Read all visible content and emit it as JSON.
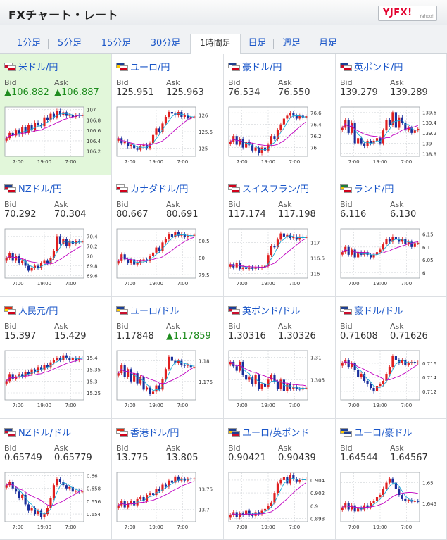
{
  "header": {
    "title": "FXチャート・レート",
    "logo": "YJFX!",
    "logo_sub": "Yahoo!"
  },
  "tabs": [
    {
      "label": "1分足",
      "active": false
    },
    {
      "label": "5分足",
      "active": false
    },
    {
      "label": "15分足",
      "active": false
    },
    {
      "label": "30分足",
      "active": false
    },
    {
      "label": "1時間足",
      "active": true
    },
    {
      "label": "日足",
      "active": false
    },
    {
      "label": "週足",
      "active": false
    },
    {
      "label": "月足",
      "active": false
    }
  ],
  "labels": {
    "bid": "Bid",
    "ask": "Ask"
  },
  "colors": {
    "link": "#1a56c8",
    "up": "#1e8c1e",
    "bull": "#e02020",
    "bear": "#1a2f9c",
    "ma_fast": "#19a9d6",
    "ma_slow": "#c000c0",
    "selected_bg": "#e2f7da"
  },
  "pairs": [
    {
      "name": "米ドル/円",
      "bid": "▲106.882",
      "ask": "▲106.887",
      "bid_up": true,
      "ask_up": true,
      "selected": true,
      "flags": [
        "us",
        "jp"
      ],
      "chart_data": {
        "type": "candlestick",
        "x_ticks": [
          "7:00",
          "19:00",
          "7:00"
        ],
        "y_ticks": [
          "107",
          "106.8",
          "106.6",
          "106.4",
          "106.2"
        ],
        "ylim": [
          106.1,
          107.05
        ],
        "close": [
          106.45,
          106.55,
          106.5,
          106.6,
          106.52,
          106.66,
          106.55,
          106.7,
          106.6,
          106.75,
          106.7,
          106.68,
          106.85,
          106.8,
          106.92,
          106.85,
          106.98,
          106.9,
          106.95,
          106.88,
          106.9,
          106.86,
          106.9,
          106.88,
          106.89
        ]
      }
    },
    {
      "name": "ユーロ/円",
      "bid": "125.951",
      "ask": "125.963",
      "bid_up": false,
      "ask_up": false,
      "selected": false,
      "flags": [
        "eu",
        "jp"
      ],
      "chart_data": {
        "type": "candlestick",
        "x_ticks": [
          "7:00",
          "19:00",
          "7:00"
        ],
        "y_ticks": [
          "126",
          "125.5",
          "125"
        ],
        "ylim": [
          124.75,
          126.25
        ],
        "close": [
          125.3,
          125.15,
          125.2,
          125.05,
          125.1,
          125.0,
          124.95,
          125.05,
          125.1,
          125.0,
          125.15,
          125.4,
          125.6,
          125.5,
          125.75,
          125.95,
          126.1,
          126.05,
          126.0,
          126.1,
          125.95,
          126.0,
          125.9,
          125.95,
          125.96
        ]
      }
    },
    {
      "name": "豪ドル/円",
      "bid": "76.534",
      "ask": "76.550",
      "bid_up": false,
      "ask_up": false,
      "selected": false,
      "flags": [
        "au",
        "jp"
      ],
      "chart_data": {
        "type": "candlestick",
        "x_ticks": [
          "7:00",
          "19:00",
          "7:00"
        ],
        "y_ticks": [
          "76.6",
          "76.4",
          "76.2",
          "76"
        ],
        "ylim": [
          75.85,
          76.7
        ],
        "close": [
          76.1,
          76.2,
          76.05,
          76.15,
          76.0,
          76.1,
          76.05,
          75.95,
          76.0,
          75.9,
          76.0,
          75.95,
          76.05,
          76.2,
          76.15,
          76.3,
          76.4,
          76.5,
          76.55,
          76.6,
          76.55,
          76.5,
          76.55,
          76.52,
          76.54
        ]
      }
    },
    {
      "name": "英ポンド/円",
      "bid": "139.279",
      "ask": "139.289",
      "bid_up": false,
      "ask_up": false,
      "selected": false,
      "flags": [
        "gb",
        "jp"
      ],
      "chart_data": {
        "type": "candlestick",
        "x_ticks": [
          "7:00",
          "19:00",
          "7:00"
        ],
        "y_ticks": [
          "139.6",
          "139.4",
          "139.2",
          "139",
          "138.8"
        ],
        "ylim": [
          138.75,
          139.7
        ],
        "close": [
          139.3,
          139.45,
          139.2,
          139.4,
          139.0,
          139.1,
          139.0,
          138.95,
          139.05,
          139.0,
          139.05,
          139.1,
          139.0,
          139.25,
          139.45,
          139.35,
          139.6,
          139.3,
          139.5,
          139.4,
          139.25,
          139.3,
          139.2,
          139.25,
          139.28
        ]
      }
    },
    {
      "name": "NZドル/円",
      "bid": "70.292",
      "ask": "70.304",
      "bid_up": false,
      "ask_up": false,
      "selected": false,
      "flags": [
        "nz",
        "jp"
      ],
      "chart_data": {
        "type": "candlestick",
        "x_ticks": [
          "7:00",
          "19:00",
          "7:00"
        ],
        "y_ticks": [
          "70.4",
          "70.2",
          "70",
          "69.8",
          "69.6"
        ],
        "ylim": [
          69.55,
          70.55
        ],
        "close": [
          69.95,
          70.05,
          69.9,
          70.0,
          69.85,
          69.9,
          69.8,
          69.7,
          69.75,
          69.8,
          69.75,
          69.85,
          69.9,
          69.85,
          69.95,
          70.1,
          70.4,
          70.25,
          70.35,
          70.2,
          70.3,
          70.25,
          70.3,
          70.28,
          70.29
        ]
      }
    },
    {
      "name": "カナダドル/円",
      "bid": "80.667",
      "ask": "80.691",
      "bid_up": false,
      "ask_up": false,
      "selected": false,
      "flags": [
        "ca",
        "jp"
      ],
      "chart_data": {
        "type": "candlestick",
        "x_ticks": [
          "7:00",
          "19:00",
          "7:00"
        ],
        "y_ticks": [
          "80.5",
          "80",
          "79.5"
        ],
        "ylim": [
          79.4,
          80.85
        ],
        "close": [
          79.9,
          80.1,
          79.95,
          79.85,
          79.95,
          79.8,
          79.85,
          79.9,
          79.95,
          79.9,
          80.05,
          80.15,
          80.3,
          80.2,
          80.45,
          80.55,
          80.7,
          80.6,
          80.75,
          80.65,
          80.7,
          80.6,
          80.65,
          80.66,
          80.67
        ]
      }
    },
    {
      "name": "スイスフラン/円",
      "bid": "117.174",
      "ask": "117.198",
      "bid_up": false,
      "ask_up": false,
      "selected": false,
      "flags": [
        "ch",
        "jp"
      ],
      "chart_data": {
        "type": "candlestick",
        "x_ticks": [
          "7:00",
          "19:00",
          "7:00"
        ],
        "y_ticks": [
          "117",
          "116.5",
          "116"
        ],
        "ylim": [
          115.85,
          117.45
        ],
        "close": [
          116.3,
          116.2,
          116.35,
          116.15,
          116.2,
          116.15,
          116.2,
          116.15,
          116.2,
          116.18,
          116.2,
          116.25,
          116.6,
          116.9,
          116.85,
          117.1,
          117.3,
          117.2,
          117.25,
          117.15,
          117.2,
          117.1,
          117.2,
          117.17,
          117.18
        ]
      }
    },
    {
      "name": "ランド/円",
      "bid": "6.116",
      "ask": "6.130",
      "bid_up": false,
      "ask_up": false,
      "selected": false,
      "flags": [
        "za",
        "jp"
      ],
      "chart_data": {
        "type": "candlestick",
        "x_ticks": [
          "7:00",
          "19:00",
          "7:00"
        ],
        "y_ticks": [
          "6.15",
          "6.1",
          "6.05",
          "6"
        ],
        "ylim": [
          5.98,
          6.17
        ],
        "close": [
          6.08,
          6.1,
          6.07,
          6.09,
          6.06,
          6.08,
          6.07,
          6.08,
          6.07,
          6.06,
          6.07,
          6.08,
          6.09,
          6.11,
          6.13,
          6.12,
          6.14,
          6.13,
          6.12,
          6.13,
          6.11,
          6.12,
          6.1,
          6.115,
          6.116
        ]
      }
    },
    {
      "name": "人民元/円",
      "bid": "15.397",
      "ask": "15.429",
      "bid_up": false,
      "ask_up": false,
      "selected": false,
      "flags": [
        "cn",
        "jp"
      ],
      "chart_data": {
        "type": "candlestick",
        "x_ticks": [
          "7:00",
          "19:00",
          "7:00"
        ],
        "y_ticks": [
          "15.4",
          "15.35",
          "15.3",
          "15.25"
        ],
        "ylim": [
          15.22,
          15.43
        ],
        "close": [
          15.3,
          15.33,
          15.31,
          15.32,
          15.33,
          15.32,
          15.34,
          15.33,
          15.35,
          15.34,
          15.36,
          15.35,
          15.37,
          15.36,
          15.38,
          15.39,
          15.4,
          15.39,
          15.41,
          15.4,
          15.39,
          15.4,
          15.39,
          15.4,
          15.397
        ]
      }
    },
    {
      "name": "ユーロ/ドル",
      "bid": "1.17848",
      "ask": "▲1.17859",
      "bid_up": false,
      "ask_up": true,
      "selected": false,
      "flags": [
        "eu",
        "us"
      ],
      "chart_data": {
        "type": "candlestick",
        "x_ticks": [
          "7:00",
          "19:00",
          "7:00"
        ],
        "y_ticks": [
          "1.18",
          "1.175"
        ],
        "ylim": [
          1.1705,
          1.1825
        ],
        "close": [
          1.177,
          1.179,
          1.176,
          1.178,
          1.175,
          1.177,
          1.1745,
          1.176,
          1.173,
          1.1735,
          1.172,
          1.1725,
          1.174,
          1.173,
          1.1755,
          1.178,
          1.181,
          1.18,
          1.1795,
          1.18,
          1.179,
          1.1788,
          1.179,
          1.1785,
          1.1785
        ]
      }
    },
    {
      "name": "英ポンド/ドル",
      "bid": "1.30316",
      "ask": "1.30326",
      "bid_up": false,
      "ask_up": false,
      "selected": false,
      "flags": [
        "gb",
        "us"
      ],
      "chart_data": {
        "type": "candlestick",
        "x_ticks": [
          "7:00",
          "19:00",
          "7:00"
        ],
        "y_ticks": [
          "1.31",
          "1.305"
        ],
        "ylim": [
          1.3005,
          1.3115
        ],
        "close": [
          1.309,
          1.308,
          1.307,
          1.309,
          1.306,
          1.305,
          1.3055,
          1.304,
          1.306,
          1.303,
          1.304,
          1.3035,
          1.305,
          1.306,
          1.3045,
          1.303,
          1.305,
          1.3025,
          1.304,
          1.303,
          1.3035,
          1.303,
          1.3028,
          1.3032,
          1.3032
        ]
      }
    },
    {
      "name": "豪ドル/ドル",
      "bid": "0.71608",
      "ask": "0.71626",
      "bid_up": false,
      "ask_up": false,
      "selected": false,
      "flags": [
        "au",
        "us"
      ],
      "chart_data": {
        "type": "candlestick",
        "x_ticks": [
          "7:00",
          "19:00",
          "7:00"
        ],
        "y_ticks": [
          "0.716",
          "0.714",
          "0.712"
        ],
        "ylim": [
          0.7108,
          0.7178
        ],
        "close": [
          0.716,
          0.7165,
          0.7155,
          0.716,
          0.715,
          0.714,
          0.7145,
          0.7135,
          0.713,
          0.7125,
          0.712,
          0.7128,
          0.713,
          0.7135,
          0.7145,
          0.7155,
          0.717,
          0.7165,
          0.716,
          0.7165,
          0.7158,
          0.716,
          0.7162,
          0.7161,
          0.7161
        ]
      }
    },
    {
      "name": "NZドル/ドル",
      "bid": "0.65749",
      "ask": "0.65779",
      "bid_up": false,
      "ask_up": false,
      "selected": false,
      "flags": [
        "nz",
        "us"
      ],
      "chart_data": {
        "type": "candlestick",
        "x_ticks": [
          "7:00",
          "19:00",
          "7:00"
        ],
        "y_ticks": [
          "0.66",
          "0.658",
          "0.656",
          "0.654"
        ],
        "ylim": [
          0.6528,
          0.6605
        ],
        "close": [
          0.6585,
          0.659,
          0.658,
          0.6575,
          0.6565,
          0.657,
          0.6555,
          0.6545,
          0.655,
          0.654,
          0.6545,
          0.6535,
          0.654,
          0.655,
          0.6565,
          0.6585,
          0.6595,
          0.659,
          0.6585,
          0.658,
          0.6582,
          0.6575,
          0.6576,
          0.6575,
          0.6575
        ]
      }
    },
    {
      "name": "香港ドル/円",
      "bid": "13.775",
      "ask": "13.805",
      "bid_up": false,
      "ask_up": false,
      "selected": false,
      "flags": [
        "hk",
        "jp"
      ],
      "chart_data": {
        "type": "candlestick",
        "x_ticks": [
          "7:00",
          "19:00",
          "7:00"
        ],
        "y_ticks": [
          "13.75",
          "13.7"
        ],
        "ylim": [
          13.67,
          13.79
        ],
        "close": [
          13.71,
          13.72,
          13.705,
          13.715,
          13.72,
          13.71,
          13.725,
          13.73,
          13.72,
          13.735,
          13.74,
          13.735,
          13.75,
          13.745,
          13.76,
          13.755,
          13.77,
          13.765,
          13.78,
          13.77,
          13.775,
          13.77,
          13.775,
          13.774,
          13.775
        ]
      }
    },
    {
      "name": "ユーロ/英ポンド",
      "bid": "0.90421",
      "ask": "0.90439",
      "bid_up": false,
      "ask_up": false,
      "selected": false,
      "flags": [
        "eu",
        "gb"
      ],
      "chart_data": {
        "type": "candlestick",
        "x_ticks": [
          "7:00",
          "19:00",
          "7:00"
        ],
        "y_ticks": [
          "0.904",
          "0.902",
          "0.9",
          "0.898"
        ],
        "ylim": [
          0.8975,
          0.9052
        ],
        "close": [
          0.8985,
          0.899,
          0.8982,
          0.8988,
          0.8985,
          0.8992,
          0.8986,
          0.8984,
          0.899,
          0.8987,
          0.8992,
          0.8995,
          0.9,
          0.9005,
          0.902,
          0.9035,
          0.904,
          0.9045,
          0.9035,
          0.9048,
          0.9042,
          0.9038,
          0.904,
          0.9042,
          0.9042
        ]
      }
    },
    {
      "name": "ユーロ/豪ドル",
      "bid": "1.64544",
      "ask": "1.64567",
      "bid_up": false,
      "ask_up": false,
      "selected": false,
      "flags": [
        "eu",
        "au"
      ],
      "chart_data": {
        "type": "candlestick",
        "x_ticks": [
          "7:00",
          "19:00",
          "7:00"
        ],
        "y_ticks": [
          "1.65",
          "1.645"
        ],
        "ylim": [
          1.6405,
          1.6525
        ],
        "close": [
          1.644,
          1.645,
          1.6435,
          1.6445,
          1.643,
          1.644,
          1.6435,
          1.6445,
          1.644,
          1.645,
          1.6455,
          1.6465,
          1.647,
          1.6485,
          1.65,
          1.651,
          1.65,
          1.6485,
          1.647,
          1.646,
          1.6455,
          1.6458,
          1.6454,
          1.6455,
          1.6454
        ]
      }
    }
  ]
}
